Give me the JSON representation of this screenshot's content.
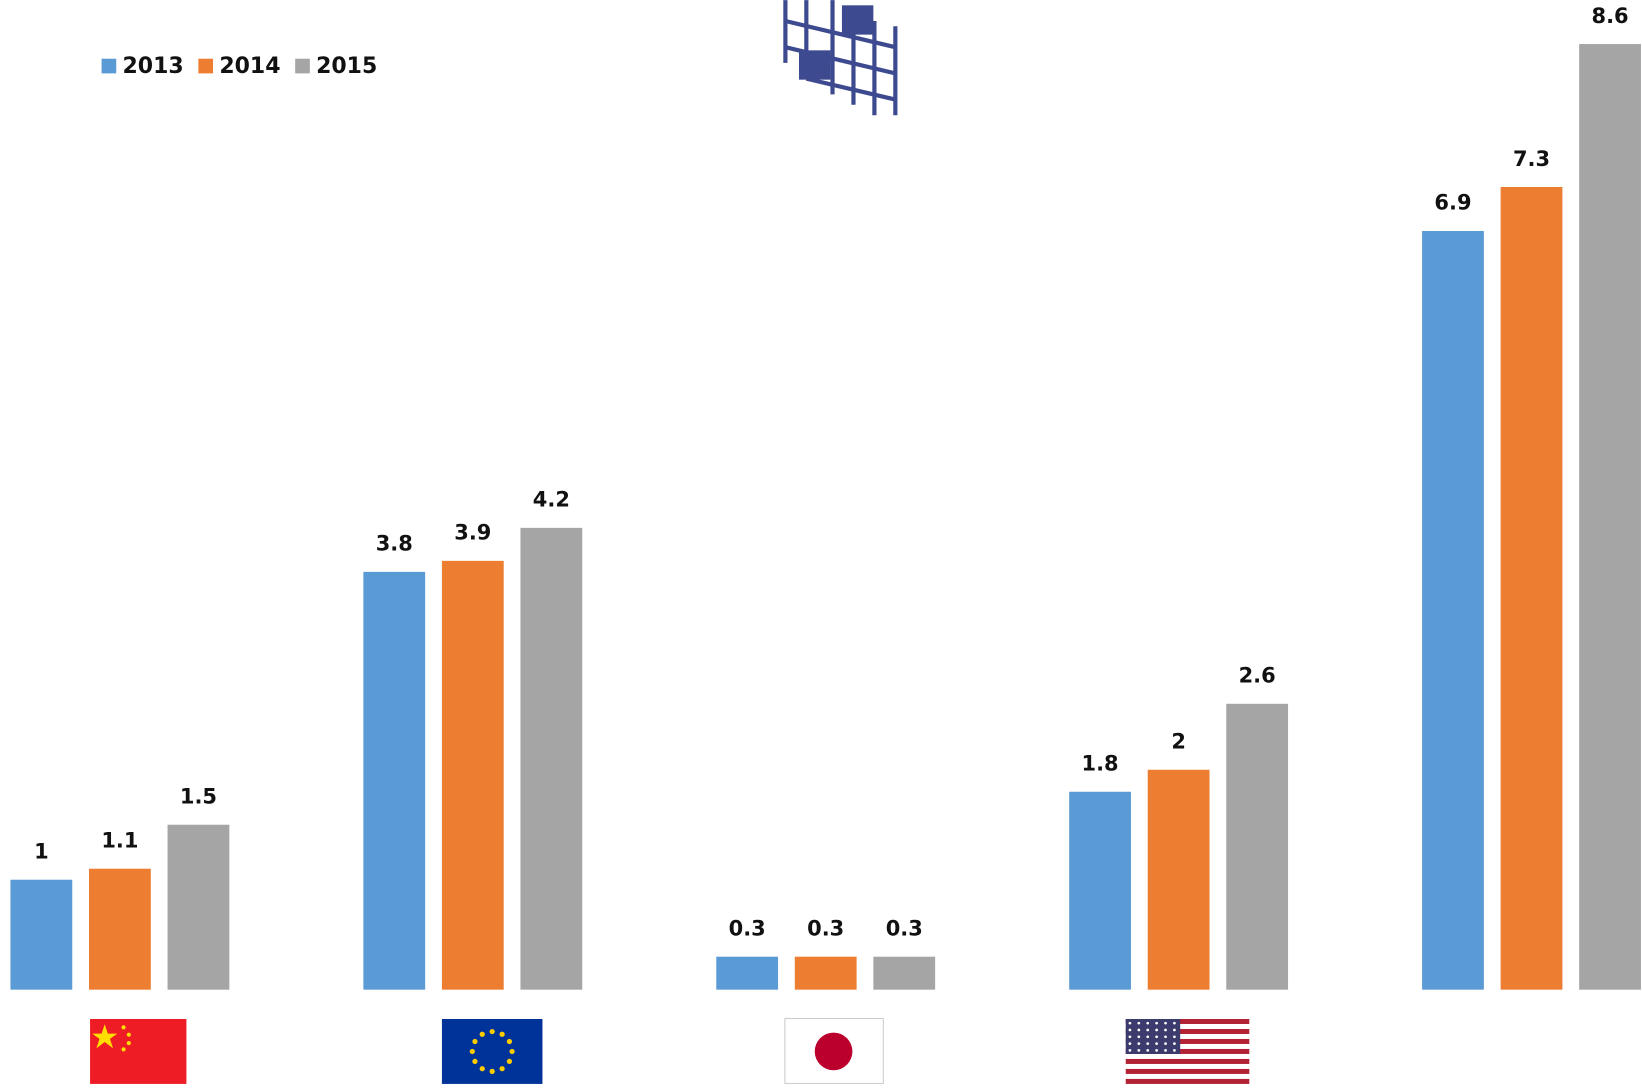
{
  "chart_data": {
    "type": "bar",
    "categories": [
      null,
      null,
      null,
      null,
      null
    ],
    "series": [
      {
        "name": "2013",
        "color": "#5b9bd5",
        "values": [
          1,
          3.8,
          0.3,
          1.8,
          6.9
        ]
      },
      {
        "name": "2014",
        "color": "#ed7d31",
        "values": [
          1.1,
          3.9,
          0.3,
          2,
          7.3
        ]
      },
      {
        "name": "2015",
        "color": "#a5a5a5",
        "values": [
          1.5,
          4.2,
          0.3,
          2.6,
          8.6
        ]
      }
    ],
    "ylim": [
      0,
      8.6
    ],
    "grid": false,
    "legend": "top-left"
  }
}
